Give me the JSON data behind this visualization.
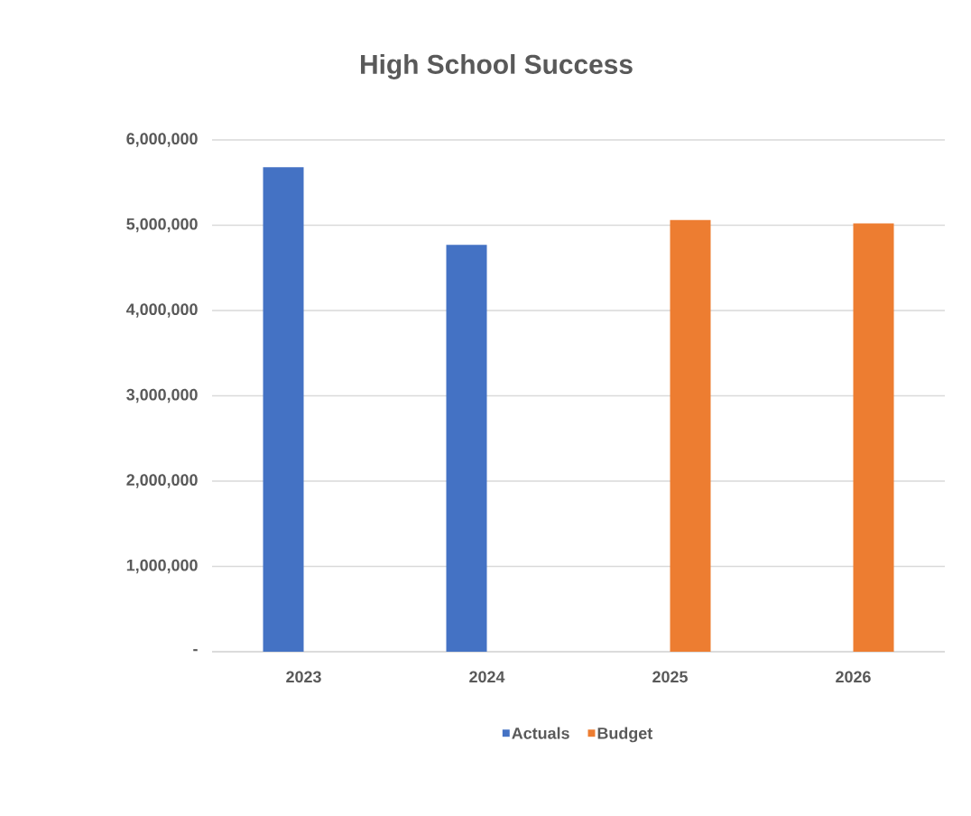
{
  "chart_data": {
    "type": "bar",
    "title": "High School Success",
    "categories": [
      "2023",
      "2024",
      "2025",
      "2026"
    ],
    "series": [
      {
        "name": "Actuals",
        "color": "#4472c4",
        "values": [
          5680000,
          4770000,
          null,
          null
        ]
      },
      {
        "name": "Budget",
        "color": "#ed7d31",
        "values": [
          null,
          null,
          5060000,
          5020000
        ]
      }
    ],
    "ylim": [
      0,
      6000000
    ],
    "yticks": [
      {
        "value": 0,
        "label": "-"
      },
      {
        "value": 1000000,
        "label": "1,000,000"
      },
      {
        "value": 2000000,
        "label": "2,000,000"
      },
      {
        "value": 3000000,
        "label": "3,000,000"
      },
      {
        "value": 4000000,
        "label": "4,000,000"
      },
      {
        "value": 5000000,
        "label": "5,000,000"
      },
      {
        "value": 6000000,
        "label": "6,000,000"
      }
    ],
    "grid": "y",
    "legend": "bottom"
  }
}
